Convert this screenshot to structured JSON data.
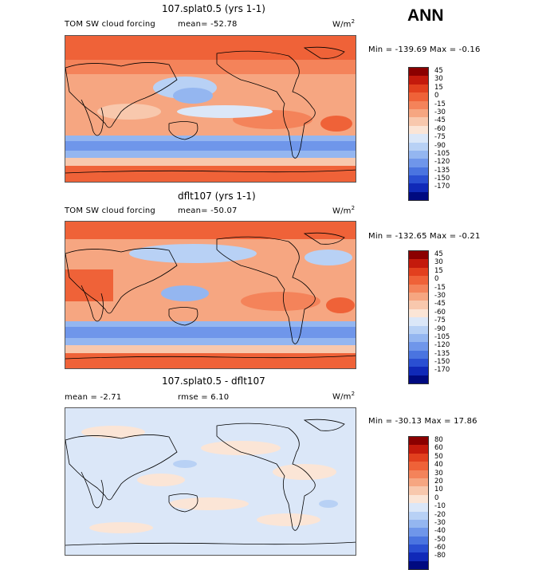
{
  "season": "ANN",
  "panels": [
    {
      "title": "107.splat0.5 (yrs 1-1)",
      "field": "TOM SW cloud forcing",
      "mean_label": "mean=",
      "mean_value": "-52.78",
      "units": "W/m",
      "units_sup": "2",
      "minmax": "Min = -139.69 Max =  -0.16"
    },
    {
      "title": "dflt107 (yrs 1-1)",
      "field": "TOM SW cloud forcing",
      "mean_label": "mean=",
      "mean_value": "-50.07",
      "units": "W/m",
      "units_sup": "2",
      "minmax": "Min = -132.65 Max =  -0.21"
    },
    {
      "title": "107.splat0.5 - dflt107",
      "mean_label": "mean =",
      "mean_value": "-2.71",
      "rmse_label": "rmse =",
      "rmse_value": "6.10",
      "units": "W/m",
      "units_sup": "2",
      "minmax": "Min = -30.13 Max =  17.86"
    }
  ],
  "colorbar_fields": {
    "labels": [
      "45",
      "30",
      "15",
      "0",
      "-15",
      "-30",
      "-45",
      "-60",
      "-75",
      "-90",
      "-105",
      "-120",
      "-135",
      "-150",
      "-170"
    ],
    "colors": [
      "#8b0000",
      "#c41a0c",
      "#e2401e",
      "#ef6238",
      "#f4835a",
      "#f6a681",
      "#f8c8ad",
      "#fbe5d6",
      "#dbe7f8",
      "#b8d1f5",
      "#94b6f0",
      "#6f96ea",
      "#4a74e0",
      "#2a4fd2",
      "#1029b8",
      "#000a80"
    ]
  },
  "colorbar_diff": {
    "labels": [
      "80",
      "60",
      "50",
      "40",
      "30",
      "20",
      "10",
      "0",
      "-10",
      "-20",
      "-30",
      "-40",
      "-50",
      "-60",
      "-80"
    ],
    "colors": [
      "#8b0000",
      "#c41a0c",
      "#e2401e",
      "#ef6238",
      "#f4835a",
      "#f6a681",
      "#f8c8ad",
      "#fbe5d6",
      "#dbe7f8",
      "#b8d1f5",
      "#94b6f0",
      "#6f96ea",
      "#4a74e0",
      "#2a4fd2",
      "#1029b8",
      "#000a80"
    ]
  }
}
